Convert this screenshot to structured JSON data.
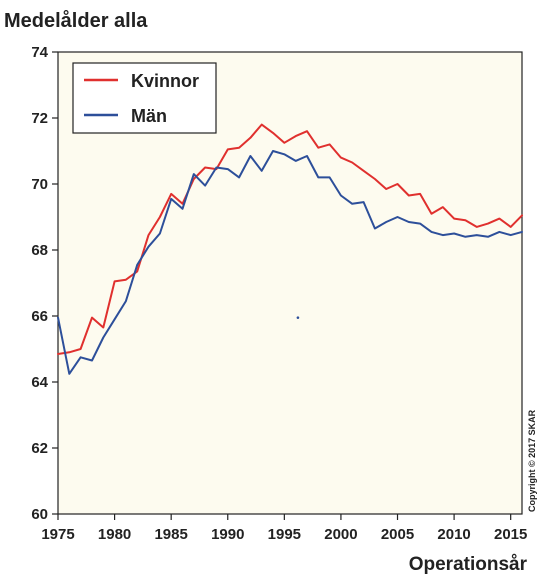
{
  "chart_data": {
    "type": "line",
    "title": "Medelålder alla",
    "xlabel": "Operationsår",
    "ylabel": "",
    "xlim": [
      1975,
      2016
    ],
    "ylim": [
      60,
      74
    ],
    "xticks": [
      1975,
      1980,
      1985,
      1990,
      1995,
      2000,
      2005,
      2010,
      2015
    ],
    "yticks": [
      60,
      62,
      64,
      66,
      68,
      70,
      72,
      74
    ],
    "grid": false,
    "legend": "top-left",
    "plot_background": "#fdfbef",
    "x": [
      1975,
      1976,
      1977,
      1978,
      1979,
      1980,
      1981,
      1982,
      1983,
      1984,
      1985,
      1986,
      1987,
      1988,
      1989,
      1990,
      1991,
      1992,
      1993,
      1994,
      1995,
      1996,
      1997,
      1998,
      1999,
      2000,
      2001,
      2002,
      2003,
      2004,
      2005,
      2006,
      2007,
      2008,
      2009,
      2010,
      2011,
      2012,
      2013,
      2014,
      2015,
      2016
    ],
    "series": [
      {
        "name": "Kvinnor",
        "color": "#e0302e",
        "values": [
          64.85,
          64.9,
          65.0,
          65.95,
          65.65,
          67.05,
          67.1,
          67.35,
          68.45,
          69.0,
          69.7,
          69.4,
          70.15,
          70.5,
          70.45,
          71.05,
          71.1,
          71.4,
          71.8,
          71.55,
          71.25,
          71.45,
          71.6,
          71.1,
          71.2,
          70.8,
          70.65,
          70.4,
          70.15,
          69.85,
          70.0,
          69.65,
          69.7,
          69.1,
          69.3,
          68.95,
          68.9,
          68.7,
          68.8,
          68.95,
          68.7,
          69.05
        ]
      },
      {
        "name": "Män",
        "color": "#2d4f9a",
        "values": [
          65.95,
          64.25,
          64.75,
          64.65,
          65.35,
          65.9,
          66.45,
          67.55,
          68.1,
          68.5,
          69.55,
          69.25,
          70.3,
          69.95,
          70.5,
          70.45,
          70.2,
          70.85,
          70.4,
          71.0,
          70.9,
          70.7,
          70.85,
          70.2,
          70.2,
          69.65,
          69.4,
          69.45,
          68.65,
          68.85,
          69.0,
          68.85,
          68.8,
          68.55,
          68.45,
          68.5,
          68.4,
          68.45,
          68.4,
          68.55,
          68.45,
          68.55
        ]
      }
    ],
    "annotations": [
      {
        "text": "",
        "x": 1996.2,
        "y": 65.95,
        "color": "#2d4f9a"
      }
    ],
    "copyright": "Copyright © 2017 SKAR"
  }
}
